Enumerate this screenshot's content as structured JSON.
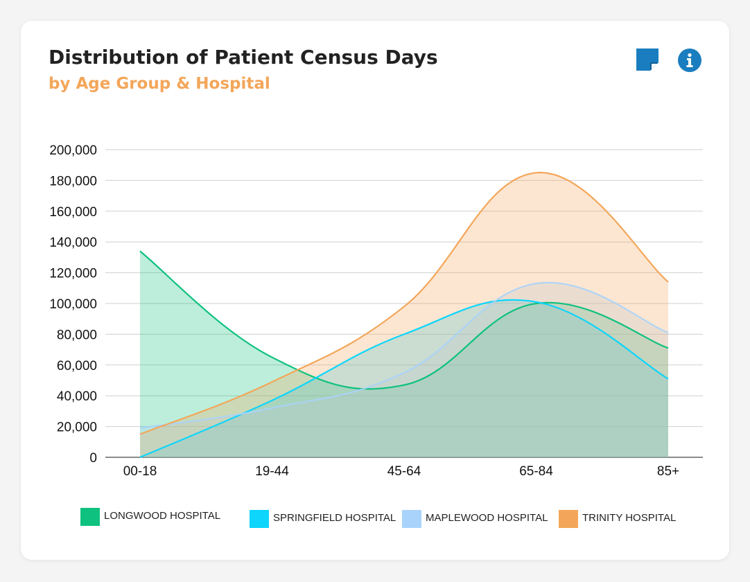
{
  "header": {
    "title": "Distribution of Patient Census Days",
    "subtitle": "by Age Group & Hospital"
  },
  "toolbar": {
    "note_icon": "sticky-note-icon",
    "info_icon": "info-icon"
  },
  "chart_data": {
    "type": "area",
    "title": "Distribution of Patient Census Days",
    "subtitle": "by Age Group & Hospital",
    "xlabel": "",
    "ylabel": "",
    "categories": [
      "00-18",
      "19-44",
      "45-64",
      "65-84",
      "85+"
    ],
    "ylim": [
      0,
      200000
    ],
    "yticks": [
      0,
      20000,
      40000,
      60000,
      80000,
      100000,
      120000,
      140000,
      160000,
      180000,
      200000
    ],
    "ytick_labels": [
      "0",
      "20,000",
      "40,000",
      "60,000",
      "80,000",
      "100,000",
      "120,000",
      "140,000",
      "160,000",
      "180,000",
      "200,000"
    ],
    "grid": true,
    "legend_position": "bottom",
    "series": [
      {
        "name": "LONGWOOD HOSPITAL",
        "values": [
          134000,
          65000,
          47000,
          100000,
          71000
        ],
        "color": "#0ec17e"
      },
      {
        "name": "SPRINGFIELD HOSPITAL",
        "values": [
          0,
          37000,
          80000,
          101000,
          51000
        ],
        "color": "#0dd5fb"
      },
      {
        "name": "MAPLEWOOD HOSPITAL",
        "values": [
          19000,
          32000,
          55000,
          113000,
          81000
        ],
        "color": "#a9d3fb"
      },
      {
        "name": "TRINITY HOSPITAL",
        "values": [
          15000,
          49000,
          98000,
          185000,
          114000
        ],
        "color": "#f3a659"
      }
    ]
  }
}
